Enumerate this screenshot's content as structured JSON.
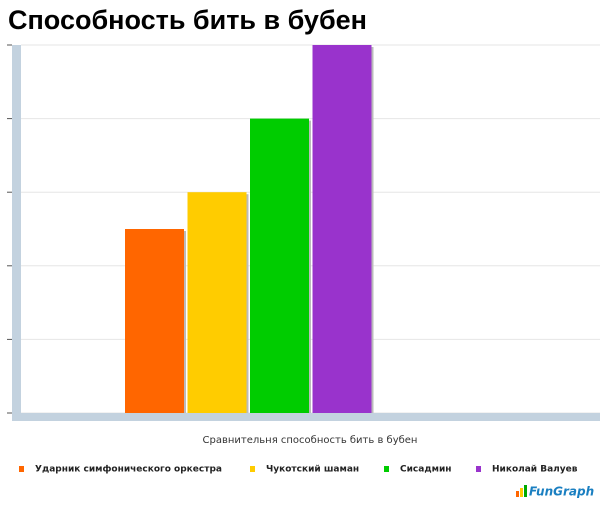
{
  "chart_data": {
    "type": "bar",
    "title": "Способность бить в бубен",
    "x_label": "Сравнительня способность бить в бубен",
    "categories": [
      null
    ],
    "series": [
      {
        "name": "Ударник симфонического оркестра",
        "color": "#ff6600",
        "values": [
          2.5
        ]
      },
      {
        "name": "Чукотский шаман",
        "color": "#ffcc00",
        "values": [
          3
        ]
      },
      {
        "name": "Сисадмин",
        "color": "#00cc00",
        "values": [
          4
        ]
      },
      {
        "name": "Николай Валуев",
        "color": "#9933cc",
        "values": [
          5
        ]
      }
    ],
    "ylim": [
      0,
      5
    ],
    "yticks": [
      0,
      1,
      2,
      3,
      4,
      5
    ],
    "grid": true,
    "legend": "bottom"
  },
  "logo": "FunGraph"
}
